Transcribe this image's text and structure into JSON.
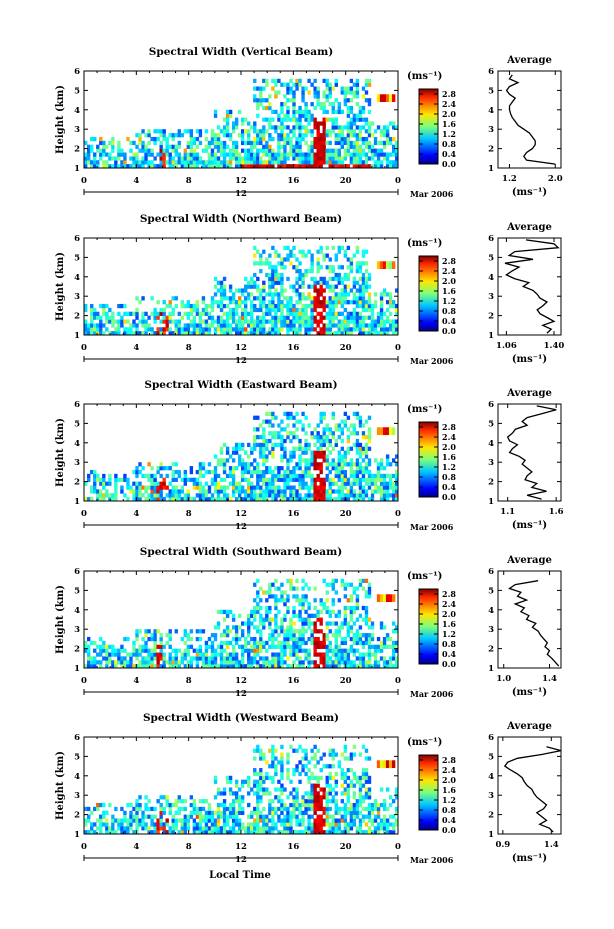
{
  "figure": {
    "bottom_xlabel": "Local Time"
  },
  "chart_data": [
    {
      "type": "heatmap",
      "title": "Spectral Width (Vertical Beam)",
      "ylabel": "Height (km)",
      "yticks": [
        "1",
        "2",
        "3",
        "4",
        "5",
        "6"
      ],
      "ylim": [
        1,
        6
      ],
      "xticks": [
        "0",
        "4",
        "8",
        "12",
        "16",
        "20",
        "0"
      ],
      "xlim": [
        0,
        24
      ],
      "date_day": "12",
      "date_label": "Mar 2006",
      "colorbar_unit": "(ms⁻¹)",
      "colorbar_ticks": [
        "0.0",
        "0.4",
        "0.8",
        "1.2",
        "1.6",
        "2.0",
        "2.4",
        "2.8"
      ],
      "colorbar_range": [
        0.0,
        3.0
      ],
      "average_profile": {
        "title": "Average",
        "xlabel": "(ms⁻¹)",
        "xticks": [
          "1.2",
          "2.0"
        ],
        "xlim": [
          1.0,
          2.1
        ],
        "ylim": [
          1,
          6
        ],
        "yticks": [
          "1",
          "2",
          "3",
          "4",
          "5",
          "6"
        ],
        "heights": [
          5.8,
          5.6,
          5.4,
          5.2,
          5.0,
          4.8,
          4.6,
          4.4,
          4.2,
          4.0,
          3.8,
          3.6,
          3.4,
          3.2,
          3.0,
          2.8,
          2.6,
          2.4,
          2.2,
          2.0,
          1.8,
          1.6,
          1.4,
          1.2
        ],
        "values": [
          1.25,
          1.2,
          1.35,
          1.2,
          1.15,
          1.2,
          1.3,
          1.25,
          1.2,
          1.2,
          1.22,
          1.25,
          1.3,
          1.35,
          1.45,
          1.55,
          1.6,
          1.65,
          1.65,
          1.6,
          1.5,
          1.45,
          1.5,
          2.0
        ]
      }
    },
    {
      "type": "heatmap",
      "title": "Spectral Width (Northward Beam)",
      "ylabel": "Height (km)",
      "yticks": [
        "1",
        "2",
        "3",
        "4",
        "5",
        "6"
      ],
      "ylim": [
        1,
        6
      ],
      "xticks": [
        "0",
        "4",
        "8",
        "12",
        "16",
        "20",
        "0"
      ],
      "xlim": [
        0,
        24
      ],
      "date_day": "12",
      "date_label": "Mar 2006",
      "colorbar_unit": "(ms⁻¹)",
      "colorbar_ticks": [
        "0.0",
        "0.4",
        "0.8",
        "1.2",
        "1.6",
        "2.0",
        "2.4",
        "2.8"
      ],
      "colorbar_range": [
        0.0,
        3.0
      ],
      "average_profile": {
        "title": "Average",
        "xlabel": "(ms⁻¹)",
        "xticks": [
          "1.06",
          "1.40"
        ],
        "xlim": [
          1.0,
          1.45
        ],
        "ylim": [
          1,
          6
        ],
        "yticks": [
          "1",
          "2",
          "3",
          "4",
          "5",
          "6"
        ],
        "heights": [
          5.9,
          5.7,
          5.5,
          5.3,
          5.1,
          4.9,
          4.7,
          4.5,
          4.3,
          4.1,
          3.9,
          3.7,
          3.5,
          3.3,
          3.1,
          2.9,
          2.7,
          2.5,
          2.3,
          2.1,
          1.9,
          1.7,
          1.5,
          1.3,
          1.1
        ],
        "values": [
          1.2,
          1.4,
          1.43,
          1.12,
          1.08,
          1.25,
          1.05,
          1.15,
          1.1,
          1.06,
          1.12,
          1.22,
          1.18,
          1.25,
          1.28,
          1.3,
          1.35,
          1.32,
          1.28,
          1.3,
          1.35,
          1.4,
          1.32,
          1.38,
          1.35
        ]
      }
    },
    {
      "type": "heatmap",
      "title": "Spectral Width (Eastward Beam)",
      "ylabel": "Height (km)",
      "yticks": [
        "1",
        "2",
        "3",
        "4",
        "5",
        "6"
      ],
      "ylim": [
        1,
        6
      ],
      "xticks": [
        "0",
        "4",
        "8",
        "12",
        "16",
        "20",
        "0"
      ],
      "xlim": [
        0,
        24
      ],
      "date_day": "12",
      "date_label": "Mar 2006",
      "colorbar_unit": "(ms⁻¹)",
      "colorbar_ticks": [
        "0.0",
        "0.4",
        "0.8",
        "1.2",
        "1.6",
        "2.0",
        "2.4",
        "2.8"
      ],
      "colorbar_range": [
        0.0,
        3.0
      ],
      "average_profile": {
        "title": "Average",
        "xlabel": "(ms⁻¹)",
        "xticks": [
          "1.1",
          "1.6"
        ],
        "xlim": [
          1.0,
          1.65
        ],
        "ylim": [
          1,
          6
        ],
        "yticks": [
          "1",
          "2",
          "3",
          "4",
          "5",
          "6"
        ],
        "heights": [
          5.9,
          5.7,
          5.5,
          5.3,
          5.1,
          4.9,
          4.7,
          4.5,
          4.3,
          4.1,
          3.9,
          3.7,
          3.5,
          3.3,
          3.1,
          2.9,
          2.7,
          2.5,
          2.3,
          2.1,
          1.9,
          1.7,
          1.5,
          1.3,
          1.1
        ],
        "values": [
          1.4,
          1.6,
          1.45,
          1.3,
          1.25,
          1.3,
          1.18,
          1.15,
          1.1,
          1.12,
          1.2,
          1.15,
          1.12,
          1.22,
          1.28,
          1.25,
          1.3,
          1.35,
          1.3,
          1.28,
          1.4,
          1.35,
          1.5,
          1.3,
          1.45
        ]
      }
    },
    {
      "type": "heatmap",
      "title": "Spectral Width (Southward Beam)",
      "ylabel": "Height (km)",
      "yticks": [
        "1",
        "2",
        "3",
        "4",
        "5",
        "6"
      ],
      "ylim": [
        1,
        6
      ],
      "xticks": [
        "0",
        "4",
        "8",
        "12",
        "16",
        "20",
        "0"
      ],
      "xlim": [
        0,
        24
      ],
      "date_day": "12",
      "date_label": "Mar 2006",
      "colorbar_unit": "(ms⁻¹)",
      "colorbar_ticks": [
        "0.0",
        "0.4",
        "0.8",
        "1.2",
        "1.6",
        "2.0",
        "2.4",
        "2.8"
      ],
      "colorbar_range": [
        0.0,
        3.0
      ],
      "average_profile": {
        "title": "Average",
        "xlabel": "(ms⁻¹)",
        "xticks": [
          "1.0",
          "1.4"
        ],
        "xlim": [
          0.95,
          1.5
        ],
        "ylim": [
          1,
          6
        ],
        "yticks": [
          "1",
          "2",
          "3",
          "4",
          "5",
          "6"
        ],
        "heights": [
          5.5,
          5.3,
          5.1,
          4.9,
          4.7,
          4.5,
          4.3,
          4.1,
          3.9,
          3.7,
          3.5,
          3.3,
          3.1,
          2.9,
          2.7,
          2.5,
          2.3,
          2.1,
          1.9,
          1.7,
          1.5,
          1.3,
          1.1
        ],
        "values": [
          1.3,
          1.1,
          1.05,
          1.15,
          1.12,
          1.2,
          1.1,
          1.18,
          1.15,
          1.22,
          1.2,
          1.28,
          1.25,
          1.3,
          1.32,
          1.35,
          1.38,
          1.36,
          1.4,
          1.38,
          1.42,
          1.45,
          1.48
        ]
      }
    },
    {
      "type": "heatmap",
      "title": "Spectral Width (Westward Beam)",
      "ylabel": "Height (km)",
      "yticks": [
        "1",
        "2",
        "3",
        "4",
        "5",
        "6"
      ],
      "ylim": [
        1,
        6
      ],
      "xticks": [
        "0",
        "4",
        "8",
        "12",
        "16",
        "20",
        "0"
      ],
      "xlim": [
        0,
        24
      ],
      "date_day": "12",
      "date_label": "Mar 2006",
      "colorbar_unit": "(ms⁻¹)",
      "colorbar_ticks": [
        "0.0",
        "0.4",
        "0.8",
        "1.2",
        "1.6",
        "2.0",
        "2.4",
        "2.8"
      ],
      "colorbar_range": [
        0.0,
        3.0
      ],
      "average_profile": {
        "title": "Average",
        "xlabel": "(ms⁻¹)",
        "xticks": [
          "0.9",
          "1.4"
        ],
        "xlim": [
          0.85,
          1.5
        ],
        "ylim": [
          1,
          6
        ],
        "yticks": [
          "1",
          "2",
          "3",
          "4",
          "5",
          "6"
        ],
        "heights": [
          5.5,
          5.3,
          5.1,
          4.9,
          4.7,
          4.5,
          4.3,
          4.1,
          3.9,
          3.7,
          3.5,
          3.3,
          3.1,
          2.9,
          2.7,
          2.5,
          2.3,
          2.1,
          1.9,
          1.7,
          1.5,
          1.3,
          1.1
        ],
        "values": [
          1.35,
          1.5,
          1.3,
          1.05,
          0.95,
          0.92,
          0.98,
          1.05,
          1.1,
          1.12,
          1.15,
          1.2,
          1.22,
          1.25,
          1.3,
          1.35,
          1.32,
          1.25,
          1.3,
          1.35,
          1.28,
          1.38,
          1.42
        ]
      }
    }
  ]
}
